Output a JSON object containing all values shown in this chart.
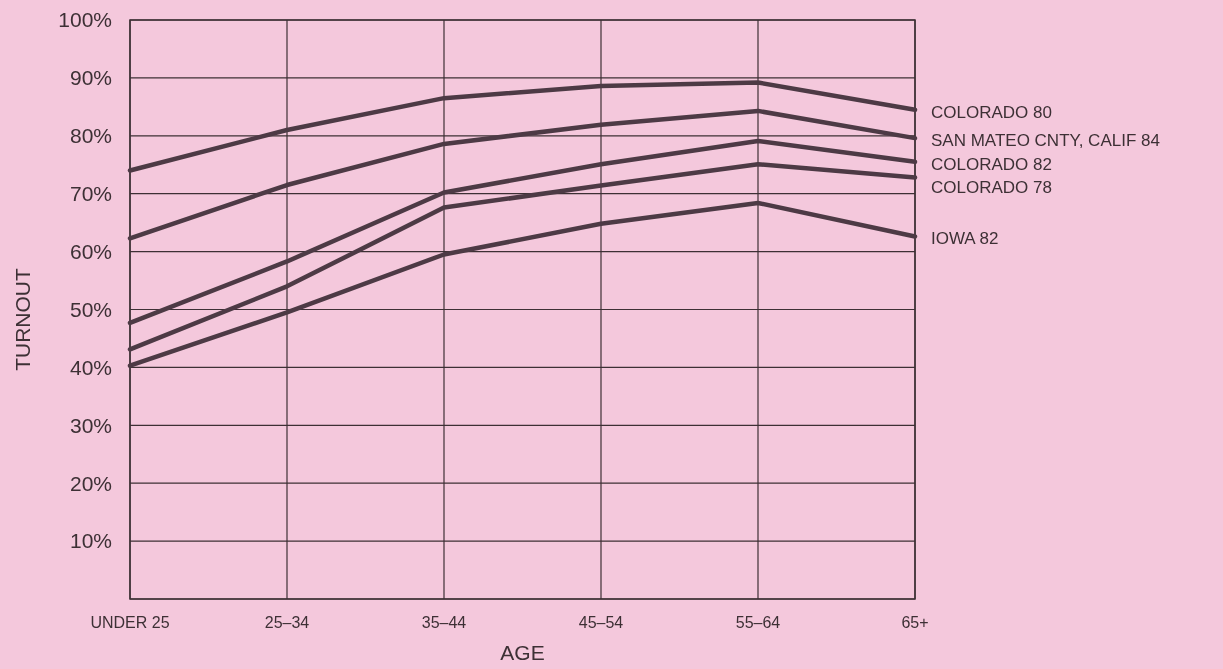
{
  "chart_data": {
    "type": "line",
    "xlabel": "AGE",
    "ylabel": "TURNOUT",
    "categories": [
      "UNDER 25",
      "25–34",
      "35–44",
      "45–54",
      "55–64",
      "65+"
    ],
    "ylim": [
      0,
      100
    ],
    "yticks": [
      {
        "value": 0,
        "label": null
      },
      {
        "value": 10,
        "label": "10%"
      },
      {
        "value": 20,
        "label": "20%"
      },
      {
        "value": 30,
        "label": "30%"
      },
      {
        "value": 40,
        "label": "40%"
      },
      {
        "value": 50,
        "label": "50%"
      },
      {
        "value": 60,
        "label": "60%"
      },
      {
        "value": 70,
        "label": "70%"
      },
      {
        "value": 80,
        "label": "80%"
      },
      {
        "value": 90,
        "label": "90%"
      },
      {
        "value": 100,
        "label": "100%"
      }
    ],
    "grid": true,
    "legend": false,
    "marker": "none",
    "line_style": "solid",
    "series": [
      {
        "name": "COLORADO 80",
        "color": "#4d3a45",
        "values": [
          74,
          81,
          86.5,
          88.6,
          89.2,
          84.5
        ]
      },
      {
        "name": "SAN MATEO CNTY, CALIF 84",
        "color": "#4d3a45",
        "values": [
          62.3,
          71.5,
          78.6,
          81.9,
          84.3,
          79.6
        ]
      },
      {
        "name": "COLORADO 82",
        "color": "#4d3a45",
        "values": [
          47.7,
          58.3,
          70.2,
          75.1,
          79.1,
          75.5
        ]
      },
      {
        "name": "COLORADO 78",
        "color": "#4d3a45",
        "values": [
          43.1,
          54,
          67.6,
          71.4,
          75.1,
          72.8
        ]
      },
      {
        "name": "IOWA 82",
        "color": "#4d3a45",
        "values": [
          40.3,
          49.5,
          59.5,
          64.8,
          68.4,
          62.6
        ]
      }
    ]
  }
}
